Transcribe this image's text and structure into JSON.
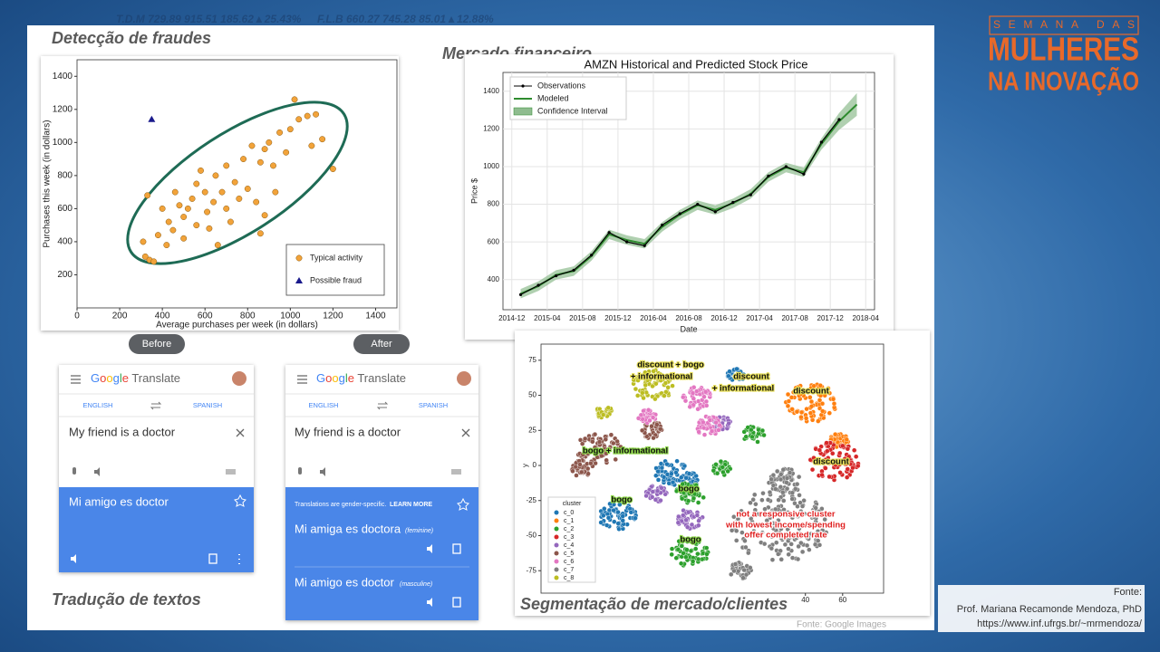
{
  "ticker": [
    "T.D.M  729.89  915.51  185.62▲25.43%",
    "F.L.B  660.27  745.28  85.01▲12.88%"
  ],
  "logo": {
    "line1": "SEMANA DAS",
    "line2": "MULHERES",
    "line3": "NA INOVAÇÃO"
  },
  "sections": {
    "fraud": "Detecção de fraudes",
    "finance": "Mercado financeiro",
    "translation": "Tradução de textos",
    "segmentation": "Segmentação de mercado/clientes"
  },
  "credit": "Fonte: Google Images",
  "source": {
    "label": "Fonte:",
    "author": "Prof. Mariana Recamonde Mendoza, PhD",
    "url": "https://www.inf.ufrgs.br/~mrmendoza/"
  },
  "translate": {
    "before": {
      "button": "Before",
      "app": "Google Translate",
      "source_lang": "ENGLISH",
      "target_lang": "SPANISH",
      "input": "My friend is a doctor",
      "output": "Mi amigo es doctor"
    },
    "after": {
      "button": "After",
      "app": "Google Translate",
      "source_lang": "ENGLISH",
      "target_lang": "SPANISH",
      "input": "My friend is a doctor",
      "notice": "Translations are gender-specific.",
      "learn_more": "LEARN MORE",
      "outputs": [
        {
          "text": "Mi amiga es doctora",
          "gender": "(feminine)"
        },
        {
          "text": "Mi amigo es doctor",
          "gender": "(masculine)"
        }
      ]
    }
  },
  "chart_data": [
    {
      "type": "scatter",
      "xlabel": "Average purchases per week (in dollars)",
      "ylabel": "Purchases this week (in dollars)",
      "xlim": [
        0,
        1500
      ],
      "ylim": [
        0,
        1500
      ],
      "xticks": [
        0,
        200,
        400,
        600,
        800,
        1000,
        1200,
        1400
      ],
      "yticks": [
        200,
        400,
        600,
        800,
        1000,
        1200,
        1400
      ],
      "legend": "lower right",
      "series": [
        {
          "name": "Typical activity",
          "color": "#f2a33a",
          "marker": "circle",
          "x": [
            330,
            310,
            320,
            340,
            360,
            380,
            400,
            420,
            430,
            450,
            460,
            480,
            500,
            500,
            520,
            540,
            560,
            560,
            580,
            600,
            610,
            620,
            640,
            650,
            660,
            680,
            700,
            700,
            720,
            740,
            760,
            780,
            800,
            820,
            840,
            860,
            880,
            900,
            920,
            950,
            980,
            1000,
            1020,
            1040,
            1080,
            1100,
            1120,
            1150,
            1200,
            860,
            930,
            880
          ],
          "values": [
            680,
            400,
            310,
            290,
            280,
            440,
            600,
            380,
            520,
            470,
            700,
            620,
            550,
            420,
            600,
            660,
            750,
            500,
            830,
            700,
            580,
            480,
            640,
            800,
            380,
            700,
            860,
            600,
            520,
            760,
            660,
            900,
            720,
            980,
            640,
            880,
            560,
            1000,
            860,
            1060,
            940,
            1080,
            1260,
            1140,
            1160,
            980,
            1170,
            1020,
            840,
            450,
            700,
            960
          ]
        },
        {
          "name": "Possible fraud",
          "color": "#1a1a8c",
          "marker": "triangle",
          "x": [
            350
          ],
          "values": [
            1140
          ]
        }
      ]
    },
    {
      "type": "line",
      "title": "AMZN Historical and Predicted Stock Price",
      "xlabel": "Date",
      "ylabel": "Price $",
      "xlim": [
        "2014-11",
        "2018-05"
      ],
      "ylim": [
        240,
        1500
      ],
      "xticks": [
        "2014-12",
        "2015-04",
        "2015-08",
        "2015-12",
        "2016-04",
        "2016-08",
        "2016-12",
        "2017-04",
        "2017-08",
        "2017-12",
        "2018-04"
      ],
      "yticks": [
        400,
        600,
        800,
        1000,
        1200,
        1400
      ],
      "grid": true,
      "legend": "upper left",
      "x": [
        "2015-01",
        "2015-03",
        "2015-05",
        "2015-07",
        "2015-09",
        "2015-11",
        "2016-01",
        "2016-03",
        "2016-05",
        "2016-07",
        "2016-09",
        "2016-11",
        "2017-01",
        "2017-03",
        "2017-05",
        "2017-07",
        "2017-09",
        "2017-11",
        "2018-01",
        "2018-03"
      ],
      "series": [
        {
          "name": "Observations",
          "color": "#000000",
          "values": [
            320,
            370,
            420,
            450,
            530,
            650,
            600,
            580,
            690,
            750,
            800,
            760,
            810,
            850,
            950,
            1000,
            960,
            1130,
            1250,
            null
          ]
        },
        {
          "name": "Modeled",
          "color": "#2e8b2e",
          "values": [
            325,
            365,
            425,
            445,
            525,
            640,
            610,
            590,
            680,
            745,
            795,
            770,
            805,
            855,
            945,
            995,
            970,
            1120,
            1240,
            1330
          ]
        }
      ],
      "band": {
        "name": "Confidence Interval",
        "color": "#8fbc8f",
        "lower": [
          300,
          340,
          400,
          420,
          500,
          615,
          585,
          565,
          655,
          720,
          770,
          745,
          780,
          830,
          920,
          970,
          945,
          1090,
          1195,
          1270
        ],
        "upper": [
          350,
          390,
          450,
          470,
          550,
          665,
          635,
          615,
          705,
          770,
          820,
          795,
          830,
          880,
          970,
          1020,
          995,
          1150,
          1285,
          1390
        ]
      }
    },
    {
      "type": "cluster",
      "ylabel": "y",
      "legend_title": "cluster",
      "legend": "lower left",
      "xlim": [
        -102,
        82
      ],
      "ylim": [
        -91,
        86.5
      ],
      "xticks": [
        40,
        60
      ],
      "yticks": [
        -75,
        -50,
        -25,
        0,
        25,
        50,
        75
      ],
      "clusters": [
        {
          "name": "c_0",
          "color": "#1f77b4",
          "blobs": [
            [
              -32,
              -5,
              9
            ],
            [
              -61,
              -36,
              10
            ],
            [
              2,
              64,
              5
            ],
            [
              -22,
              -10,
              5
            ]
          ]
        },
        {
          "name": "c_1",
          "color": "#ff7f0e",
          "blobs": [
            [
              43,
              45,
              14
            ],
            [
              58,
              18,
              5
            ]
          ]
        },
        {
          "name": "c_2",
          "color": "#2ca02c",
          "blobs": [
            [
              -22,
              -62,
              10
            ],
            [
              12,
              22,
              6
            ],
            [
              -22,
              -20,
              8
            ],
            [
              -5,
              -2,
              5
            ]
          ]
        },
        {
          "name": "c_3",
          "color": "#d62728",
          "blobs": [
            [
              55,
              3,
              14
            ]
          ]
        },
        {
          "name": "c_4",
          "color": "#9467bd",
          "blobs": [
            [
              -22,
              -38,
              7
            ],
            [
              -40,
              -20,
              6
            ],
            [
              -5,
              30,
              5
            ]
          ]
        },
        {
          "name": "c_5",
          "color": "#8c564b",
          "blobs": [
            [
              -71,
              12,
              12
            ],
            [
              -80,
              -2,
              6
            ],
            [
              -42,
              25,
              6
            ]
          ]
        },
        {
          "name": "c_6",
          "color": "#e377c2",
          "blobs": [
            [
              -18,
              48,
              8
            ],
            [
              -12,
              28,
              7
            ],
            [
              -45,
              35,
              5
            ]
          ]
        },
        {
          "name": "c_7",
          "color": "#7f7f7f",
          "blobs": [
            [
              26,
              -43,
              26
            ],
            [
              30,
              -10,
              10
            ],
            [
              5,
              -75,
              6
            ]
          ]
        },
        {
          "name": "c_8",
          "color": "#bcbd22",
          "blobs": [
            [
              -42,
              57,
              11
            ],
            [
              -68,
              38,
              5
            ]
          ]
        }
      ],
      "annotations": [
        "discount + bogo",
        "+ informational",
        "discount",
        "+ informational",
        "discount",
        "bogo + informational",
        "discount",
        "bogo",
        "bogo",
        "bogo",
        "not a responsive cluster",
        "with lowest income/spending",
        "offer completed rate"
      ]
    }
  ]
}
